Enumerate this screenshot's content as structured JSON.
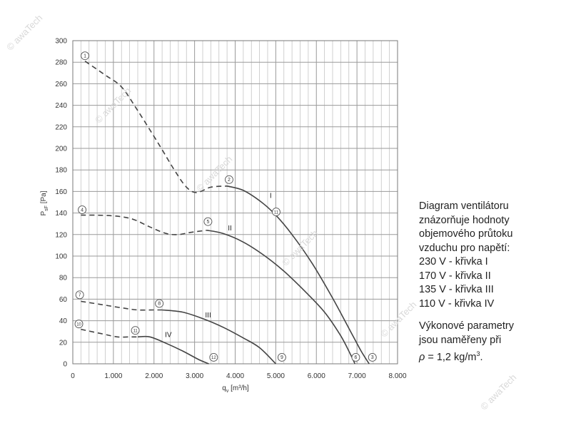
{
  "watermark": "© awaTech",
  "chart_data": {
    "type": "line",
    "title": "",
    "xlabel": "q",
    "xlabel_sub": "v",
    "xlabel_unit": "[m³/h]",
    "ylabel": "P",
    "ylabel_sub": "sF",
    "ylabel_unit": "[Pa]",
    "xlim": [
      0,
      8000
    ],
    "ylim": [
      0,
      300
    ],
    "x_ticks": [
      0,
      1000,
      2000,
      3000,
      4000,
      5000,
      6000,
      7000,
      8000
    ],
    "x_tick_labels": [
      "0",
      "1.000",
      "2.000",
      "3.000",
      "4.000",
      "5.000",
      "6.000",
      "7.000",
      "8.000"
    ],
    "y_ticks": [
      0,
      20,
      40,
      60,
      80,
      100,
      120,
      140,
      160,
      180,
      200,
      220,
      240,
      260,
      280,
      300
    ],
    "grid": true,
    "series": [
      {
        "name": "I",
        "dashed": [
          [
            300,
            281
          ],
          [
            800,
            268
          ],
          [
            1200,
            257
          ],
          [
            1600,
            235
          ],
          [
            2100,
            205
          ],
          [
            2500,
            180
          ],
          [
            2800,
            164
          ],
          [
            3050,
            159
          ],
          [
            3400,
            164
          ],
          [
            3800,
            165
          ]
        ],
        "solid": [
          [
            3800,
            165
          ],
          [
            4200,
            161
          ],
          [
            4650,
            150
          ],
          [
            5000,
            138
          ],
          [
            5400,
            120
          ],
          [
            5900,
            93
          ],
          [
            6400,
            61
          ],
          [
            6800,
            33
          ],
          [
            7100,
            12
          ],
          [
            7300,
            0
          ]
        ],
        "label_at": [
          4850,
          154
        ]
      },
      {
        "name": "II",
        "dashed": [
          [
            200,
            138
          ],
          [
            600,
            138
          ],
          [
            1100,
            137
          ],
          [
            1500,
            134
          ],
          [
            1900,
            127
          ],
          [
            2300,
            121
          ],
          [
            2600,
            120
          ],
          [
            2900,
            122
          ],
          [
            3300,
            124
          ]
        ],
        "solid": [
          [
            3300,
            124
          ],
          [
            3700,
            121
          ],
          [
            4200,
            113
          ],
          [
            4700,
            101
          ],
          [
            5200,
            86
          ],
          [
            5700,
            68
          ],
          [
            6200,
            48
          ],
          [
            6600,
            26
          ],
          [
            6850,
            8
          ],
          [
            6950,
            0
          ]
        ],
        "label_at": [
          3820,
          124
        ]
      },
      {
        "name": "III",
        "dashed": [
          [
            200,
            58
          ],
          [
            700,
            55
          ],
          [
            1200,
            52
          ],
          [
            1600,
            50
          ],
          [
            2000,
            50
          ],
          [
            2200,
            50
          ]
        ],
        "solid": [
          [
            2200,
            50
          ],
          [
            2700,
            48
          ],
          [
            3200,
            42
          ],
          [
            3700,
            34
          ],
          [
            4200,
            24
          ],
          [
            4600,
            15
          ],
          [
            5000,
            0
          ]
        ],
        "label_at": [
          3260,
          43
        ]
      },
      {
        "name": "IV",
        "dashed": [
          [
            200,
            32
          ],
          [
            700,
            28
          ],
          [
            1100,
            25
          ],
          [
            1400,
            25
          ],
          [
            1600,
            25
          ]
        ],
        "solid": [
          [
            1600,
            25
          ],
          [
            1900,
            25
          ],
          [
            2300,
            19
          ],
          [
            2700,
            12
          ],
          [
            3100,
            4
          ],
          [
            3350,
            0
          ]
        ],
        "label_at": [
          2270,
          25
        ]
      }
    ],
    "markers": [
      {
        "label": "1",
        "x": 300,
        "y": 286
      },
      {
        "label": "2",
        "x": 3850,
        "y": 171
      },
      {
        "label": "3",
        "x": 7380,
        "y": 6
      },
      {
        "label": "4",
        "x": 230,
        "y": 143
      },
      {
        "label": "5",
        "x": 3330,
        "y": 132
      },
      {
        "label": "6",
        "x": 6970,
        "y": 6
      },
      {
        "label": "7",
        "x": 170,
        "y": 64
      },
      {
        "label": "8",
        "x": 2130,
        "y": 56
      },
      {
        "label": "9",
        "x": 5150,
        "y": 6
      },
      {
        "label": "10",
        "x": 150,
        "y": 37
      },
      {
        "label": "11",
        "x": 1540,
        "y": 31
      },
      {
        "label": "11",
        "x": 5010,
        "y": 141
      },
      {
        "label": "12",
        "x": 3470,
        "y": 6
      }
    ]
  },
  "note": {
    "lines": [
      "Diagram ventilátoru",
      "znázorňuje hodnoty",
      "objemového průtoku",
      "vzduchu pro napětí:",
      "230 V - křivka I",
      "170 V - křivka II",
      "135 V - křivka III",
      "110 V - křivka IV"
    ],
    "line2": [
      "Výkonové parametry",
      "jsou naměřeny při"
    ],
    "rho_symbol": "ρ",
    "rho_value": " = 1,2 kg/m",
    "rho_sup": "3",
    "rho_end": "."
  }
}
